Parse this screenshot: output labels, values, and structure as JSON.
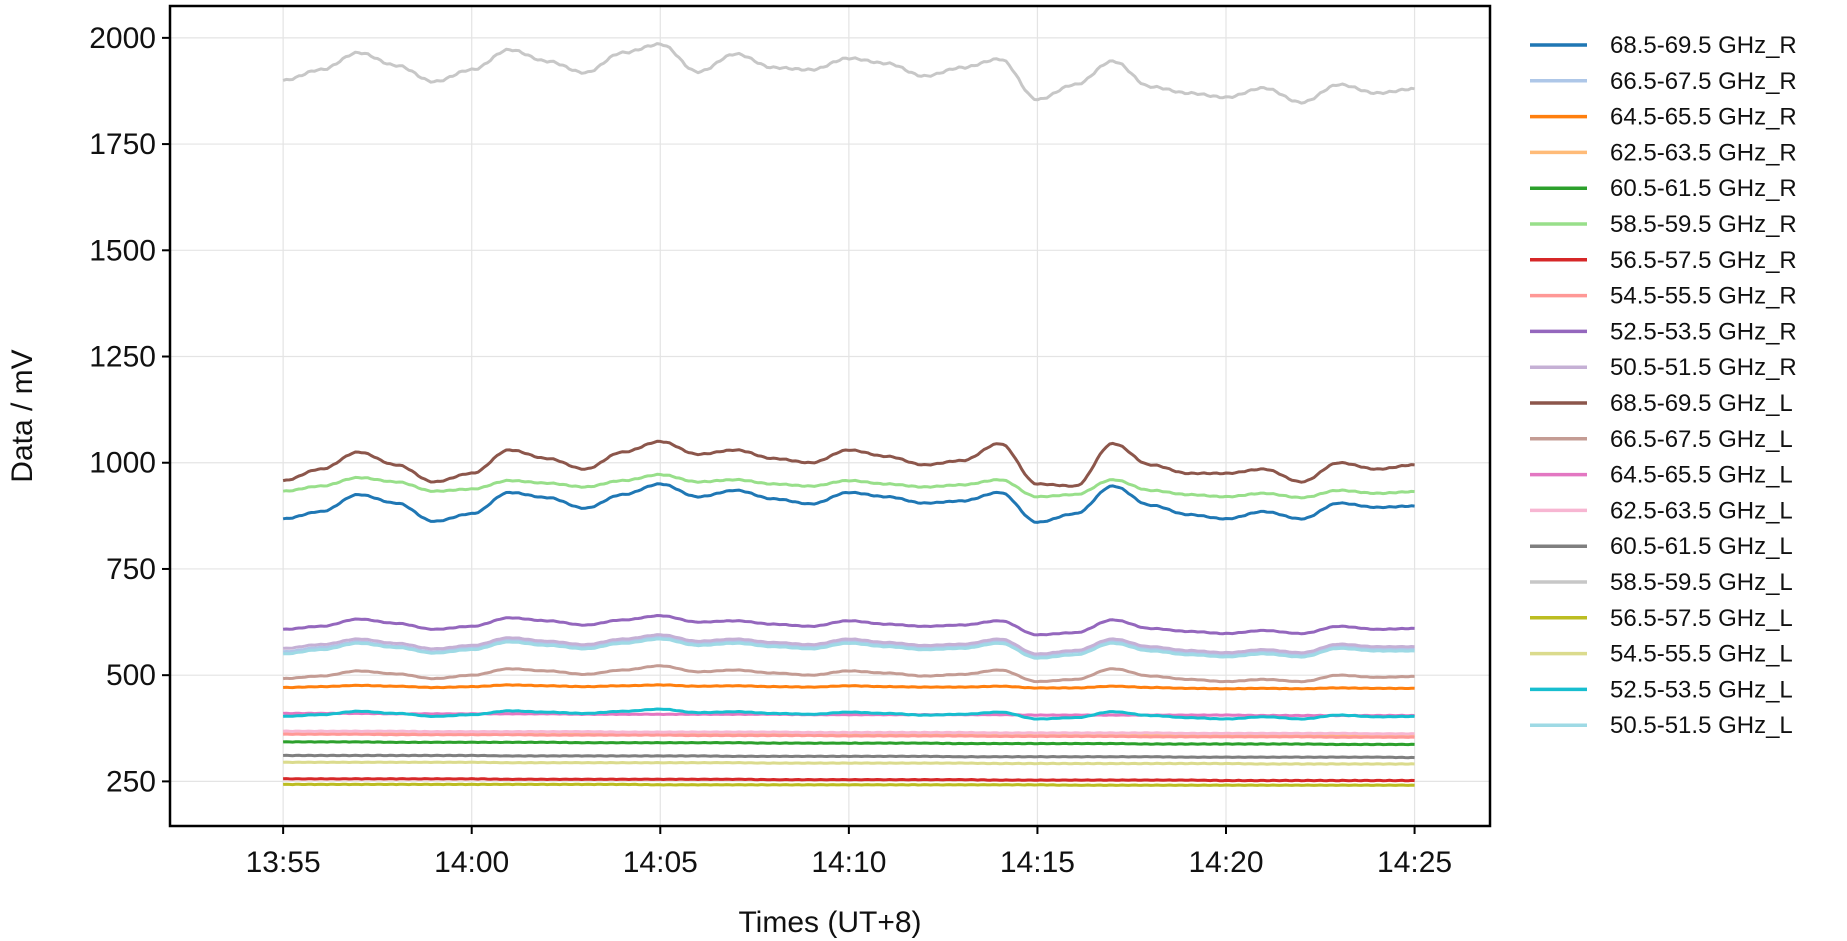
{
  "chart_data": {
    "type": "line",
    "xlabel": "Times (UT+8)",
    "ylabel": "Data / mV",
    "x_unit": "time",
    "xlim": [
      "13:52",
      "14:27"
    ],
    "ylim": [
      145,
      2075
    ],
    "grid": true,
    "legend_position": "outside-right",
    "x_ticks": [
      "13:55",
      "14:00",
      "14:05",
      "14:10",
      "14:15",
      "14:20",
      "14:25"
    ],
    "y_ticks": [
      250,
      500,
      750,
      1000,
      1250,
      1500,
      1750,
      2000
    ],
    "x": [
      "13:55",
      "13:56",
      "13:57",
      "13:58",
      "13:59",
      "14:00",
      "14:01",
      "14:02",
      "14:03",
      "14:04",
      "14:05",
      "14:06",
      "14:07",
      "14:08",
      "14:09",
      "14:10",
      "14:11",
      "14:12",
      "14:13",
      "14:14",
      "14:15",
      "14:16",
      "14:17",
      "14:18",
      "14:19",
      "14:20",
      "14:21",
      "14:22",
      "14:23",
      "14:24",
      "14:25"
    ],
    "series": [
      {
        "name": "68.5-69.5 GHz_R",
        "color": "#1f77b4",
        "values": [
          868,
          885,
          925,
          905,
          862,
          880,
          930,
          918,
          893,
          925,
          950,
          920,
          935,
          915,
          903,
          930,
          920,
          905,
          910,
          930,
          860,
          880,
          945,
          900,
          878,
          868,
          885,
          868,
          905,
          895,
          898
        ]
      },
      {
        "name": "66.5-67.5 GHz_R",
        "color": "#aec7e8",
        "values": [
          555,
          565,
          578,
          568,
          555,
          565,
          583,
          575,
          568,
          580,
          590,
          575,
          580,
          572,
          567,
          580,
          572,
          565,
          568,
          580,
          545,
          555,
          580,
          562,
          552,
          548,
          555,
          548,
          568,
          562,
          562
        ]
      },
      {
        "name": "64.5-65.5 GHz_R",
        "color": "#ff7f0e",
        "values": [
          471,
          473,
          476,
          474,
          471,
          473,
          477,
          475,
          473,
          475,
          477,
          474,
          475,
          473,
          472,
          475,
          473,
          472,
          472,
          474,
          470,
          470,
          474,
          471,
          469,
          468,
          469,
          468,
          470,
          469,
          469
        ]
      },
      {
        "name": "62.5-63.5 GHz_R",
        "color": "#ffbb78",
        "values": [
          367,
          367,
          367,
          366,
          366,
          366,
          366,
          366,
          365,
          365,
          365,
          364,
          364,
          364,
          363,
          363,
          363,
          362,
          362,
          362,
          361,
          361,
          361,
          360,
          360,
          360,
          360,
          359,
          359,
          359,
          358
        ]
      },
      {
        "name": "60.5-61.5 GHz_R",
        "color": "#2ca02c",
        "values": [
          343,
          343,
          343,
          342,
          342,
          342,
          342,
          342,
          341,
          341,
          341,
          341,
          341,
          340,
          340,
          340,
          340,
          340,
          339,
          339,
          339,
          339,
          339,
          338,
          338,
          338,
          338,
          338,
          337,
          337,
          337
        ]
      },
      {
        "name": "58.5-59.5 GHz_R",
        "color": "#98df8a",
        "values": [
          933,
          945,
          965,
          955,
          933,
          938,
          958,
          952,
          943,
          958,
          972,
          955,
          960,
          950,
          945,
          958,
          950,
          943,
          948,
          960,
          920,
          925,
          960,
          935,
          925,
          920,
          928,
          918,
          935,
          928,
          932
        ]
      },
      {
        "name": "56.5-57.5 GHz_R",
        "color": "#d62728",
        "values": [
          256,
          256,
          256,
          256,
          256,
          256,
          255,
          255,
          255,
          255,
          255,
          255,
          255,
          254,
          254,
          254,
          254,
          254,
          254,
          253,
          253,
          253,
          253,
          253,
          253,
          252,
          252,
          252,
          252,
          252,
          252
        ]
      },
      {
        "name": "54.5-55.5 GHz_R",
        "color": "#ff9896",
        "values": [
          361,
          361,
          361,
          360,
          360,
          360,
          360,
          359,
          359,
          359,
          359,
          358,
          358,
          358,
          358,
          357,
          357,
          357,
          357,
          356,
          356,
          356,
          356,
          355,
          355,
          355,
          355,
          355,
          354,
          354,
          354
        ]
      },
      {
        "name": "52.5-53.5 GHz_R",
        "color": "#9467bd",
        "values": [
          608,
          615,
          632,
          622,
          608,
          615,
          635,
          628,
          618,
          630,
          640,
          625,
          628,
          620,
          615,
          628,
          620,
          615,
          618,
          628,
          595,
          600,
          630,
          610,
          603,
          598,
          605,
          598,
          615,
          608,
          610
        ]
      },
      {
        "name": "50.5-51.5 GHz_R",
        "color": "#c5b0d5",
        "values": [
          563,
          572,
          585,
          575,
          562,
          570,
          588,
          580,
          572,
          585,
          595,
          580,
          585,
          577,
          572,
          585,
          577,
          570,
          573,
          585,
          550,
          558,
          585,
          567,
          558,
          553,
          560,
          553,
          573,
          567,
          567
        ]
      },
      {
        "name": "68.5-69.5 GHz_L",
        "color": "#8c564b",
        "values": [
          958,
          985,
          1025,
          995,
          955,
          975,
          1030,
          1010,
          985,
          1025,
          1050,
          1020,
          1030,
          1010,
          1000,
          1030,
          1015,
          995,
          1005,
          1045,
          950,
          945,
          1045,
          995,
          975,
          975,
          985,
          955,
          1000,
          985,
          995
        ]
      },
      {
        "name": "66.5-67.5 GHz_L",
        "color": "#c49c94",
        "values": [
          492,
          498,
          510,
          503,
          492,
          500,
          515,
          510,
          502,
          512,
          522,
          508,
          512,
          505,
          500,
          510,
          505,
          498,
          502,
          512,
          485,
          490,
          515,
          498,
          490,
          485,
          490,
          485,
          500,
          495,
          497
        ]
      },
      {
        "name": "64.5-65.5 GHz_L",
        "color": "#e377c2",
        "values": [
          410,
          410,
          410,
          409,
          409,
          409,
          409,
          409,
          408,
          408,
          408,
          408,
          408,
          408,
          407,
          407,
          407,
          407,
          407,
          407,
          406,
          406,
          406,
          406,
          406,
          406,
          405,
          405,
          405,
          405,
          405
        ]
      },
      {
        "name": "62.5-63.5 GHz_L",
        "color": "#f7b6d2",
        "values": [
          368,
          368,
          368,
          368,
          367,
          367,
          367,
          367,
          367,
          366,
          366,
          366,
          366,
          366,
          365,
          365,
          365,
          365,
          365,
          364,
          364,
          364,
          364,
          364,
          363,
          363,
          363,
          363,
          363,
          362,
          362
        ]
      },
      {
        "name": "60.5-61.5 GHz_L",
        "color": "#7f7f7f",
        "values": [
          311,
          311,
          311,
          311,
          311,
          311,
          310,
          310,
          310,
          310,
          310,
          310,
          309,
          309,
          309,
          309,
          309,
          309,
          308,
          308,
          308,
          308,
          308,
          308,
          307,
          307,
          307,
          307,
          307,
          307,
          306
        ]
      },
      {
        "name": "58.5-59.5 GHz_L",
        "color": "#c7c7c7",
        "values": [
          1900,
          1925,
          1965,
          1935,
          1897,
          1925,
          1972,
          1945,
          1918,
          1965,
          1985,
          1920,
          1962,
          1930,
          1925,
          1952,
          1940,
          1910,
          1930,
          1950,
          1855,
          1890,
          1945,
          1885,
          1870,
          1860,
          1882,
          1848,
          1890,
          1870,
          1880
        ]
      },
      {
        "name": "56.5-57.5 GHz_L",
        "color": "#bcbd22",
        "values": [
          243,
          243,
          243,
          243,
          243,
          243,
          243,
          243,
          243,
          243,
          242,
          242,
          242,
          242,
          242,
          242,
          242,
          242,
          242,
          242,
          242,
          241,
          241,
          241,
          241,
          241,
          241,
          241,
          241,
          241,
          241
        ]
      },
      {
        "name": "54.5-55.5 GHz_L",
        "color": "#dbdb8d",
        "values": [
          295,
          295,
          295,
          295,
          295,
          295,
          294,
          294,
          294,
          294,
          294,
          294,
          294,
          293,
          293,
          293,
          293,
          293,
          293,
          292,
          292,
          292,
          292,
          292,
          292,
          292,
          291,
          291,
          291,
          291,
          291
        ]
      },
      {
        "name": "52.5-53.5 GHz_L",
        "color": "#17becf",
        "values": [
          403,
          407,
          415,
          410,
          403,
          407,
          416,
          413,
          410,
          415,
          420,
          412,
          414,
          410,
          408,
          413,
          410,
          406,
          408,
          413,
          397,
          400,
          414,
          405,
          400,
          397,
          402,
          397,
          406,
          402,
          403
        ]
      },
      {
        "name": "50.5-51.5 GHz_L",
        "color": "#9edae5",
        "values": [
          550,
          560,
          575,
          565,
          552,
          560,
          578,
          570,
          562,
          575,
          585,
          570,
          575,
          567,
          562,
          575,
          567,
          560,
          563,
          575,
          540,
          548,
          575,
          557,
          548,
          543,
          550,
          543,
          563,
          557,
          557
        ]
      }
    ]
  }
}
